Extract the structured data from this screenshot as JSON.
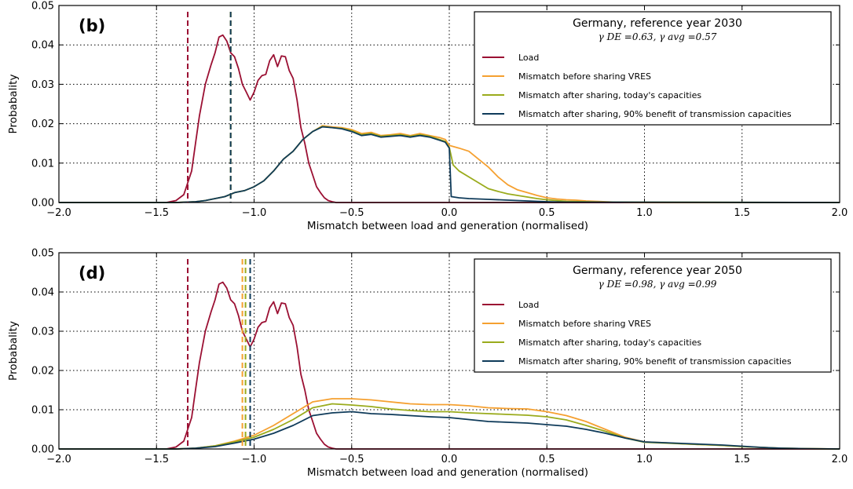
{
  "colors": {
    "load": "#9b1033",
    "before": "#f5a030",
    "today": "#9aab1c",
    "benefit": "#0f3b5a"
  },
  "chart_data": [
    {
      "type": "line",
      "panel_label": "(b)",
      "xlabel": "Mismatch between load and generation (normalised)",
      "ylabel": "Probabality",
      "xlim": [
        -2.0,
        2.0
      ],
      "ylim": [
        0.0,
        0.05
      ],
      "x_ticks": [
        "−2.0",
        "−1.5",
        "−1.0",
        "−0.5",
        "0.0",
        "0.5",
        "1.0",
        "1.5",
        "2.0"
      ],
      "y_ticks": [
        "0.00",
        "0.01",
        "0.02",
        "0.03",
        "0.04",
        "0.05"
      ],
      "grid": true,
      "legend_position": "top-right",
      "legend_title": "Germany, reference year 2030",
      "legend_subtitle": "γ DE =0.63, γ avg =0.57",
      "vlines": [
        {
          "x": -1.34,
          "series": "Load"
        },
        {
          "x": -1.12,
          "series": "Mismatch before sharing VRES"
        },
        {
          "x": -1.12,
          "series": "Mismatch after sharing, today's capacities"
        },
        {
          "x": -1.12,
          "series": "Mismatch after sharing, 90% benefit of transmission capacities"
        }
      ],
      "series": [
        {
          "name": "Load",
          "color_key": "load",
          "x": [
            -2.0,
            -1.6,
            -1.45,
            -1.4,
            -1.36,
            -1.32,
            -1.3,
            -1.28,
            -1.25,
            -1.22,
            -1.2,
            -1.18,
            -1.16,
            -1.14,
            -1.12,
            -1.1,
            -1.08,
            -1.06,
            -1.04,
            -1.02,
            -1.0,
            -0.98,
            -0.96,
            -0.94,
            -0.92,
            -0.9,
            -0.88,
            -0.86,
            -0.84,
            -0.82,
            -0.8,
            -0.78,
            -0.76,
            -0.74,
            -0.72,
            -0.7,
            -0.68,
            -0.66,
            -0.64,
            -0.62,
            -0.6,
            -0.58,
            -0.5,
            -0.3,
            2.0
          ],
          "y": [
            0,
            0,
            0.0,
            0.0005,
            0.002,
            0.008,
            0.015,
            0.022,
            0.03,
            0.035,
            0.038,
            0.042,
            0.0425,
            0.041,
            0.038,
            0.037,
            0.034,
            0.03,
            0.028,
            0.026,
            0.028,
            0.031,
            0.0322,
            0.0325,
            0.036,
            0.0375,
            0.0345,
            0.0372,
            0.037,
            0.0335,
            0.0315,
            0.026,
            0.019,
            0.015,
            0.01,
            0.007,
            0.004,
            0.0025,
            0.0012,
            0.0005,
            0.0002,
            0.0,
            0.0,
            0.0,
            0.0
          ]
        },
        {
          "name": "Mismatch before sharing VRES",
          "color_key": "before",
          "x": [
            -2.0,
            -1.4,
            -1.3,
            -1.25,
            -1.2,
            -1.15,
            -1.1,
            -1.05,
            -1.0,
            -0.95,
            -0.9,
            -0.85,
            -0.8,
            -0.75,
            -0.7,
            -0.65,
            -0.6,
            -0.55,
            -0.5,
            -0.45,
            -0.4,
            -0.35,
            -0.3,
            -0.25,
            -0.2,
            -0.15,
            -0.1,
            -0.05,
            -0.02,
            0.0,
            0.05,
            0.1,
            0.15,
            0.2,
            0.25,
            0.3,
            0.35,
            0.4,
            0.45,
            0.5,
            0.55,
            0.6,
            0.65,
            0.7,
            0.75,
            0.8,
            0.85,
            0.9,
            1.0,
            2.0
          ],
          "y": [
            0,
            0,
            0.0002,
            0.0005,
            0.001,
            0.0015,
            0.0025,
            0.003,
            0.004,
            0.0055,
            0.008,
            0.011,
            0.013,
            0.016,
            0.018,
            0.0195,
            0.0192,
            0.019,
            0.0185,
            0.0175,
            0.0178,
            0.017,
            0.0172,
            0.0175,
            0.017,
            0.0175,
            0.017,
            0.0165,
            0.016,
            0.0145,
            0.0138,
            0.013,
            0.011,
            0.009,
            0.0065,
            0.0045,
            0.0032,
            0.0025,
            0.0018,
            0.0012,
            0.0009,
            0.0007,
            0.0006,
            0.0004,
            0.0003,
            0.0002,
            0.0001,
            5e-05,
            0.0,
            0.0
          ]
        },
        {
          "name": "Mismatch after sharing, today's capacities",
          "color_key": "today",
          "x": [
            -2.0,
            -1.4,
            -1.3,
            -1.25,
            -1.2,
            -1.15,
            -1.1,
            -1.05,
            -1.0,
            -0.95,
            -0.9,
            -0.85,
            -0.8,
            -0.75,
            -0.7,
            -0.65,
            -0.6,
            -0.55,
            -0.5,
            -0.45,
            -0.4,
            -0.35,
            -0.3,
            -0.25,
            -0.2,
            -0.15,
            -0.1,
            -0.05,
            -0.02,
            0.0,
            0.02,
            0.05,
            0.1,
            0.15,
            0.2,
            0.25,
            0.3,
            0.35,
            0.4,
            0.45,
            0.5,
            0.55,
            0.6,
            0.7,
            0.8,
            2.0
          ],
          "y": [
            0,
            0,
            0.0002,
            0.0005,
            0.001,
            0.0015,
            0.0025,
            0.003,
            0.004,
            0.0055,
            0.008,
            0.011,
            0.013,
            0.016,
            0.018,
            0.0193,
            0.019,
            0.0188,
            0.0182,
            0.0172,
            0.0175,
            0.0168,
            0.017,
            0.0172,
            0.0168,
            0.0172,
            0.0168,
            0.016,
            0.0155,
            0.014,
            0.0095,
            0.008,
            0.0065,
            0.005,
            0.0035,
            0.0028,
            0.0022,
            0.0018,
            0.0014,
            0.001,
            0.0007,
            0.0005,
            0.0003,
            0.0002,
            0.0001,
            0.0
          ]
        },
        {
          "name": "Mismatch after sharing, 90% benefit of transmission capacities",
          "color_key": "benefit",
          "x": [
            -2.0,
            -1.4,
            -1.3,
            -1.25,
            -1.2,
            -1.15,
            -1.1,
            -1.05,
            -1.0,
            -0.95,
            -0.9,
            -0.85,
            -0.8,
            -0.75,
            -0.7,
            -0.65,
            -0.6,
            -0.55,
            -0.5,
            -0.45,
            -0.4,
            -0.35,
            -0.3,
            -0.25,
            -0.2,
            -0.15,
            -0.1,
            -0.05,
            -0.02,
            0.0,
            0.01,
            0.05,
            0.1,
            0.2,
            0.3,
            0.4,
            0.5,
            0.6,
            2.0
          ],
          "y": [
            0,
            0,
            0.0002,
            0.0005,
            0.001,
            0.0015,
            0.0025,
            0.003,
            0.004,
            0.0055,
            0.008,
            0.011,
            0.013,
            0.016,
            0.018,
            0.0192,
            0.019,
            0.0187,
            0.018,
            0.017,
            0.0173,
            0.0166,
            0.0168,
            0.017,
            0.0166,
            0.017,
            0.0166,
            0.0158,
            0.0153,
            0.0138,
            0.0015,
            0.0012,
            0.001,
            0.0008,
            0.0006,
            0.0004,
            0.0002,
            0.0001,
            0.0
          ]
        }
      ]
    },
    {
      "type": "line",
      "panel_label": "(d)",
      "xlabel": "Mismatch between load and generation (normalised)",
      "ylabel": "Probabality",
      "xlim": [
        -2.0,
        2.0
      ],
      "ylim": [
        0.0,
        0.05
      ],
      "x_ticks": [
        "−2.0",
        "−1.5",
        "−1.0",
        "−0.5",
        "0.0",
        "0.5",
        "1.0",
        "1.5",
        "2.0"
      ],
      "y_ticks": [
        "0.00",
        "0.01",
        "0.02",
        "0.03",
        "0.04",
        "0.05"
      ],
      "grid": true,
      "legend_position": "top-right",
      "legend_title": "Germany, reference year 2050",
      "legend_subtitle": "γ DE =0.98, γ avg =0.99",
      "vlines": [
        {
          "x": -1.34,
          "series": "Load"
        },
        {
          "x": -1.06,
          "series": "Mismatch before sharing VRES"
        },
        {
          "x": -1.05,
          "series": "Mismatch after sharing, today's capacities"
        },
        {
          "x": -1.02,
          "series": "Mismatch after sharing, 90% benefit of transmission capacities"
        }
      ],
      "series": [
        {
          "name": "Load",
          "color_key": "load",
          "x": [
            -2.0,
            -1.6,
            -1.45,
            -1.4,
            -1.36,
            -1.32,
            -1.3,
            -1.28,
            -1.25,
            -1.22,
            -1.2,
            -1.18,
            -1.16,
            -1.14,
            -1.12,
            -1.1,
            -1.08,
            -1.06,
            -1.04,
            -1.02,
            -1.0,
            -0.98,
            -0.96,
            -0.94,
            -0.92,
            -0.9,
            -0.88,
            -0.86,
            -0.84,
            -0.82,
            -0.8,
            -0.78,
            -0.76,
            -0.74,
            -0.72,
            -0.7,
            -0.68,
            -0.66,
            -0.64,
            -0.62,
            -0.6,
            -0.58,
            -0.5,
            -0.3,
            2.0
          ],
          "y": [
            0,
            0,
            0.0,
            0.0005,
            0.002,
            0.008,
            0.015,
            0.022,
            0.03,
            0.035,
            0.038,
            0.042,
            0.0425,
            0.041,
            0.038,
            0.037,
            0.034,
            0.03,
            0.028,
            0.026,
            0.028,
            0.031,
            0.0322,
            0.0325,
            0.036,
            0.0375,
            0.0345,
            0.0372,
            0.037,
            0.0335,
            0.0315,
            0.026,
            0.019,
            0.015,
            0.01,
            0.007,
            0.004,
            0.0025,
            0.0012,
            0.0005,
            0.0002,
            0.0,
            0.0,
            0.0,
            0.0
          ]
        },
        {
          "name": "Mismatch before sharing VRES",
          "color_key": "before",
          "x": [
            -2.0,
            -1.4,
            -1.3,
            -1.2,
            -1.1,
            -1.0,
            -0.9,
            -0.8,
            -0.7,
            -0.6,
            -0.5,
            -0.4,
            -0.3,
            -0.2,
            -0.1,
            0.0,
            0.1,
            0.2,
            0.3,
            0.4,
            0.5,
            0.6,
            0.7,
            0.8,
            0.9,
            1.0,
            1.1,
            1.2,
            1.3,
            1.4,
            1.5,
            1.6,
            1.7,
            1.8,
            2.0
          ],
          "y": [
            0,
            0,
            0.0002,
            0.0008,
            0.002,
            0.0035,
            0.006,
            0.009,
            0.012,
            0.0128,
            0.0128,
            0.0125,
            0.012,
            0.0115,
            0.0113,
            0.0113,
            0.011,
            0.0105,
            0.0103,
            0.0102,
            0.0095,
            0.0085,
            0.007,
            0.005,
            0.003,
            0.0018,
            0.0016,
            0.0013,
            0.0011,
            0.0009,
            0.0006,
            0.0004,
            0.0002,
            0.0001,
            0.0
          ]
        },
        {
          "name": "Mismatch after sharing, today's capacities",
          "color_key": "today",
          "x": [
            -2.0,
            -1.4,
            -1.3,
            -1.2,
            -1.1,
            -1.0,
            -0.9,
            -0.8,
            -0.7,
            -0.6,
            -0.5,
            -0.4,
            -0.3,
            -0.2,
            -0.1,
            0.0,
            0.1,
            0.2,
            0.3,
            0.4,
            0.5,
            0.6,
            0.7,
            0.8,
            0.9,
            1.0,
            1.1,
            1.2,
            1.3,
            1.4,
            1.5,
            1.6,
            1.7,
            1.8,
            2.0
          ],
          "y": [
            0,
            0,
            0.0002,
            0.0008,
            0.0018,
            0.003,
            0.005,
            0.0075,
            0.0105,
            0.0115,
            0.0112,
            0.0108,
            0.0102,
            0.0098,
            0.0095,
            0.0095,
            0.0092,
            0.009,
            0.0088,
            0.0086,
            0.0082,
            0.0074,
            0.006,
            0.0045,
            0.0028,
            0.0017,
            0.0015,
            0.0013,
            0.0011,
            0.0009,
            0.0006,
            0.0004,
            0.0002,
            0.0001,
            0.0
          ]
        },
        {
          "name": "Mismatch after sharing, 90% benefit of transmission capacities",
          "color_key": "benefit",
          "x": [
            -2.0,
            -1.4,
            -1.3,
            -1.2,
            -1.1,
            -1.0,
            -0.9,
            -0.8,
            -0.7,
            -0.6,
            -0.5,
            -0.4,
            -0.3,
            -0.2,
            -0.1,
            0.0,
            0.1,
            0.2,
            0.3,
            0.4,
            0.5,
            0.6,
            0.7,
            0.8,
            0.9,
            1.0,
            1.1,
            1.2,
            1.3,
            1.4,
            1.5,
            1.6,
            1.7,
            1.8,
            2.0
          ],
          "y": [
            0,
            0,
            0.0002,
            0.0006,
            0.0015,
            0.0025,
            0.004,
            0.006,
            0.0085,
            0.0092,
            0.0095,
            0.009,
            0.0088,
            0.0085,
            0.0082,
            0.008,
            0.0075,
            0.007,
            0.0068,
            0.0066,
            0.0062,
            0.0058,
            0.005,
            0.004,
            0.0028,
            0.0018,
            0.0016,
            0.0014,
            0.0012,
            0.001,
            0.0007,
            0.0004,
            0.0002,
            0.0001,
            0.0
          ]
        }
      ]
    }
  ]
}
